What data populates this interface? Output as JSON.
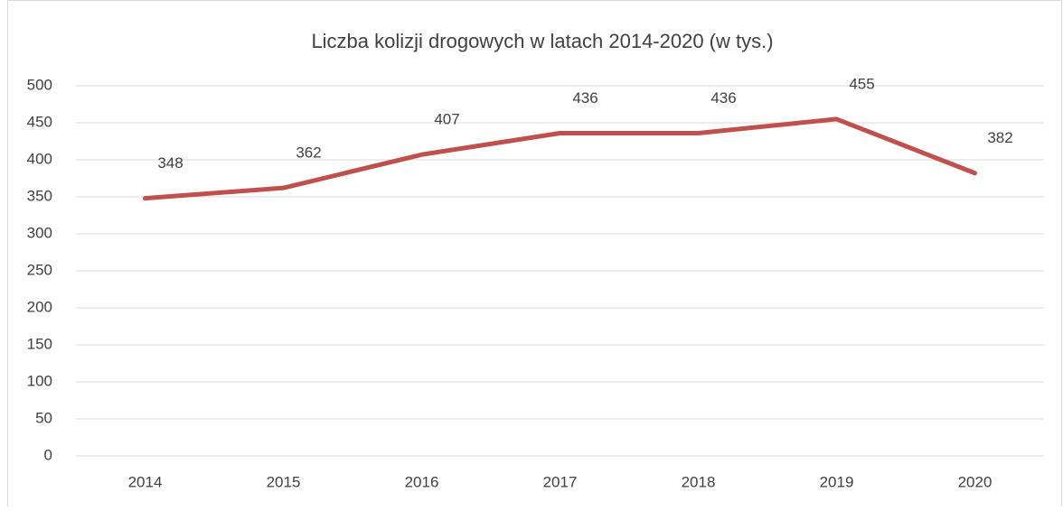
{
  "chart_data": {
    "type": "line",
    "title": "Liczba kolizji drogowych w latach 2014-2020 (w tys.)",
    "categories": [
      "2014",
      "2015",
      "2016",
      "2017",
      "2018",
      "2019",
      "2020"
    ],
    "values": [
      348,
      362,
      407,
      436,
      436,
      455,
      382
    ],
    "color": "#c0504d",
    "ylim": [
      0,
      500
    ],
    "yticks": [
      0,
      50,
      100,
      150,
      200,
      250,
      300,
      350,
      400,
      450,
      500
    ],
    "grid": true
  }
}
